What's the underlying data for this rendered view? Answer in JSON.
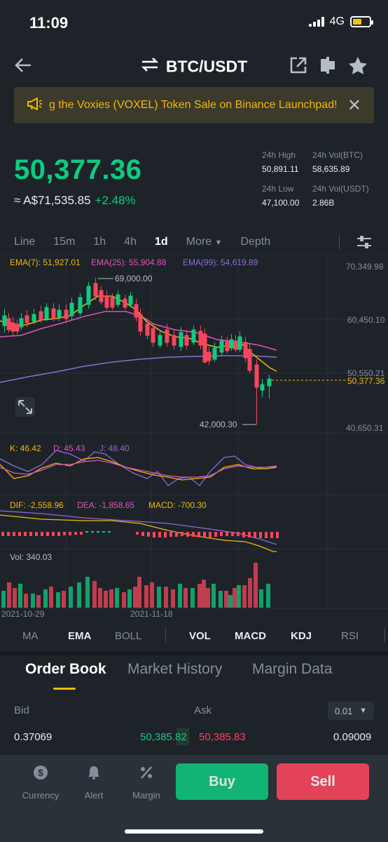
{
  "status": {
    "time": "11:09",
    "network": "4G"
  },
  "header": {
    "pair": "BTC/USDT"
  },
  "banner": {
    "text": "g the Voxies (VOXEL) Token Sale on Binance Launchpad!"
  },
  "ticker": {
    "price": "50,377.36",
    "aud": "≈ A$71,535.85",
    "change": "+2.48%",
    "high_label": "24h High",
    "high": "50,891.11",
    "volbtc_label": "24h Vol(BTC)",
    "volbtc": "58,635.89",
    "low_label": "24h Low",
    "low": "47,100.00",
    "volusdt_label": "24h Vol(USDT)",
    "volusdt": "2.86B"
  },
  "timeframes": {
    "line": "Line",
    "m15": "15m",
    "h1": "1h",
    "h4": "4h",
    "d1": "1d",
    "more": "More",
    "depth": "Depth"
  },
  "chart": {
    "ema7": "EMA(7): 51,927.01",
    "ema25": "EMA(25): 55,904.88",
    "ema99": "EMA(99): 54,619.89",
    "axis_top": "70,349.98",
    "axis_mid": "60,450.10",
    "axis_low": "50,550.21",
    "axis_bottom": "40,650.31",
    "current": "50,377.36",
    "high_marker": "69,000.00",
    "low_marker": "42,000.30",
    "kdj_k": "K: 46.42",
    "kdj_d": "D: 45.43",
    "kdj_j": "J: 48.40",
    "dif": "DIF: -2,558.96",
    "dea": "DEA: -1,858.65",
    "macd": "MACD: -700.30",
    "vol": "Vol: 340.03",
    "date1": "2021-10-29",
    "date2": "2021-11-18"
  },
  "indicators": {
    "ma": "MA",
    "ema": "EMA",
    "boll": "BOLL",
    "vol": "VOL",
    "macd": "MACD",
    "kdj": "KDJ",
    "rsi": "RSI"
  },
  "tabs": {
    "orderbook": "Order Book",
    "history": "Market History",
    "margin": "Margin Data"
  },
  "orderbook": {
    "bid_label": "Bid",
    "ask_label": "Ask",
    "precision": "0.01",
    "rows": [
      {
        "bid_qty": "0.37069",
        "bid_price": "50,385.82",
        "ask_price": "50,385.83",
        "ask_qty": "0.09009"
      }
    ]
  },
  "nav": {
    "currency": "Currency",
    "alert": "Alert",
    "margin": "Margin",
    "buy": "Buy",
    "sell": "Sell"
  },
  "colors": {
    "up": "#0ecb81",
    "down": "#f6465d",
    "accent": "#f0b90b",
    "ema7": "#f0b90b",
    "ema25": "#e052c1",
    "ema99": "#8e6bd8"
  }
}
